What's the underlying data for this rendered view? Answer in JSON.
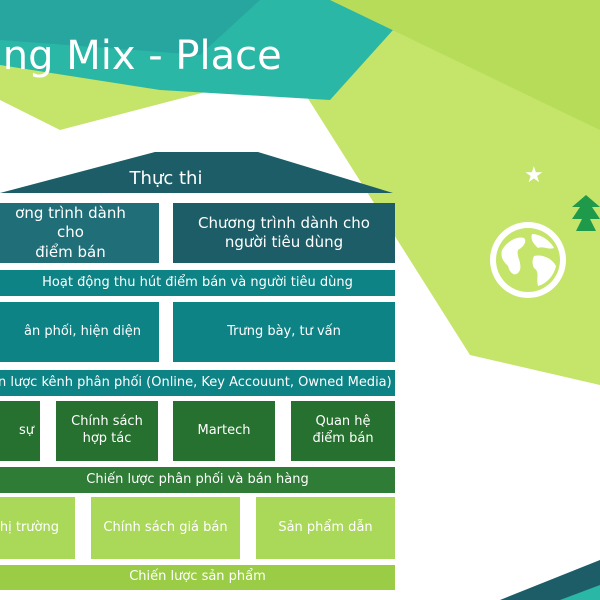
{
  "slide": {
    "title": "ting Mix - Place"
  },
  "house": {
    "roof": "Thực thi",
    "row1": [
      "ơng trình dành cho\nđiểm bán",
      "Chương trình dành cho\nngười tiêu dùng"
    ],
    "band1": "Hoạt động thu hút điểm bán và người tiêu dùng",
    "row2": [
      "ân phối, hiện diện",
      "Trưng bày, tư vấn"
    ],
    "band2": "n lược kênh phân phối (Online, Key Accouunt, Owned Media)",
    "row3": [
      "sự",
      "Chính sách\nhợp tác",
      "Martech",
      "Quan hệ\nđiểm bán"
    ],
    "band3": "Chiến lược phân phối và bán hàng",
    "row4": [
      "thị trường",
      "Chính sách giá bán",
      "Sản phẩm dẫn"
    ],
    "band4": "Chiến lược sản phẩm"
  },
  "icons": {
    "star": "star-icon",
    "globe": "globe-icon"
  },
  "colors": {
    "lime": "#c4e46a",
    "teal": "#2bb7a6",
    "dark_teal": "#1c5d67",
    "green": "#26712f",
    "light_green": "#9acd45"
  }
}
